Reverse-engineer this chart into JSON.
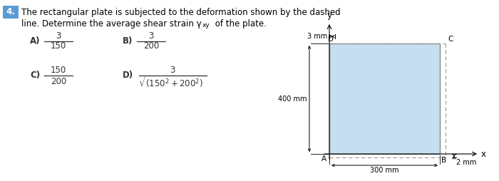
{
  "bg_color": "#ffffff",
  "title_box_color": "#5b9bd5",
  "text_color": "#333333",
  "rect_fill": "#c5dff0",
  "rect_edge": "#888888",
  "dash_color": "#999999",
  "dim_line_color": "#333333",
  "fs_main": 8.5,
  "fs_small": 7.5,
  "fs_tiny": 7.0,
  "label_A": "A",
  "label_B": "B",
  "label_C": "C",
  "label_D": "D",
  "label_x": "x",
  "label_y": "y",
  "dim_300": "300 mm",
  "dim_400": "400 mm",
  "dim_3": "3 mm",
  "dim_2": "2 mm"
}
